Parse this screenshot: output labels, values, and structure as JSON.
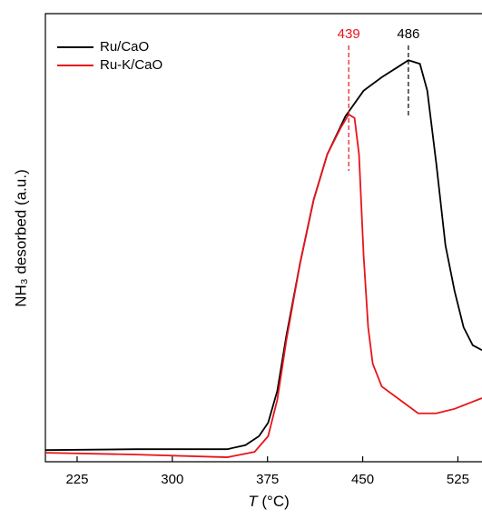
{
  "chart_data": {
    "type": "line",
    "ylabel": "NH₃ desorbed (a.u.)",
    "xlabel": {
      "symbol": "T",
      "unit": "(°C)"
    },
    "xlim": [
      200,
      544
    ],
    "ylim": [
      0,
      100
    ],
    "xticks": [
      225,
      300,
      375,
      450,
      525
    ],
    "legend": "upper left",
    "series": [
      {
        "name": "Ru/CaO",
        "color": "#000000",
        "x": [
          200,
          271.6,
          343.3,
          357.6,
          368.3,
          375.5,
          382.7,
          389.8,
          400.6,
          411.3,
          422.1,
          436.4,
          450.7,
          465,
          479.4,
          486,
          495.1,
          500.9,
          508,
          515.2,
          522.4,
          529.5,
          536.7,
          544
        ],
        "values": [
          2.6,
          2.8,
          2.8,
          3.7,
          5.7,
          8.7,
          15.8,
          28,
          44.2,
          58.4,
          68.6,
          77.1,
          82.8,
          85.8,
          88.4,
          89.6,
          88.8,
          82.8,
          66.5,
          48.3,
          38.1,
          30,
          26,
          24.9
        ]
      },
      {
        "name": "Ru-K/CaO",
        "color": "#e8141a",
        "x": [
          200,
          271.6,
          343.3,
          364.8,
          375.5,
          382.7,
          389.8,
          400.6,
          411.3,
          422.1,
          432.8,
          439,
          443.6,
          447.1,
          450.7,
          454.3,
          457.9,
          465,
          479.4,
          493.7,
          508,
          522.4,
          536.7,
          544
        ],
        "values": [
          2,
          1.6,
          1,
          2.2,
          5.7,
          13.8,
          27,
          44.2,
          58.4,
          68.6,
          74.6,
          77.5,
          76.7,
          68.6,
          46.2,
          30,
          21.9,
          16.8,
          13.8,
          10.8,
          10.8,
          11.8,
          13.4,
          14.2
        ]
      }
    ],
    "annotations": [
      {
        "text": "439",
        "x": 439,
        "color": "#e8141a"
      },
      {
        "text": "486",
        "x": 486,
        "color": "#000000"
      }
    ]
  }
}
